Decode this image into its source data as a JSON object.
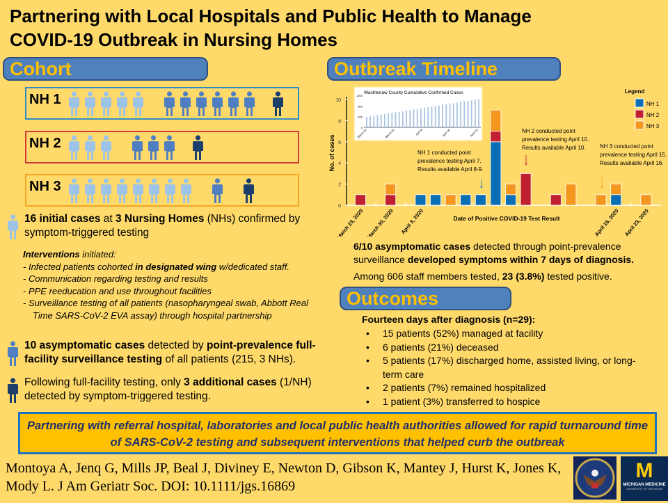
{
  "title": "Partnering with Local Hospitals and Public Health to Manage COVID-19 Outbreak in Nursing Homes",
  "sections": {
    "cohort": "Cohort",
    "timeline": "Outbreak Timeline",
    "outcomes": "Outcomes"
  },
  "cohort": {
    "homes": [
      {
        "label": "NH 1",
        "initial": 5,
        "asymptomatic": 6,
        "additional": 1,
        "color": "#2E8BC0"
      },
      {
        "label": "NH 2",
        "initial": 3,
        "asymptomatic": 3,
        "additional": 1,
        "color": "#D03A3A"
      },
      {
        "label": "NH 3",
        "initial": 8,
        "asymptomatic": 1,
        "additional": 1,
        "color": "#F5A623"
      }
    ],
    "figure_colors": {
      "initial": "#9DC3E6",
      "asymptomatic": "#4F7FC0",
      "additional": "#1B3E6B"
    }
  },
  "left": {
    "p1": {
      "b1": "16 initial cases",
      "t1": " at ",
      "b2": "3 Nursing Homes",
      "t2": " (NHs) confirmed by symptom-triggered testing"
    },
    "interventions_b": "Interventions",
    "interventions_t": " initiated:",
    "items": [
      {
        "t": "Infected patients cohorted ",
        "b": "in designated wing",
        "t2": " w/dedicated staff."
      },
      {
        "t": "Communication regarding testing and results"
      },
      {
        "t": "PPE reeducation and use throughout facilities"
      },
      {
        "t": "Surveillance testing of all patients (nasopharyngeal swab, Abbott Real Time SARS-CoV-2 EVA assay) through hospital partnership"
      }
    ],
    "p2": {
      "b1": "10 asymptomatic cases",
      "t1": " detected by ",
      "b2": "point-prevalence full-facility surveillance testing",
      "t2": " of all patients (215, 3 NHs)."
    },
    "p3": {
      "t1": "Following full-facility testing, only ",
      "b1": "3 additional cases",
      "t2": " (1/NH) detected by symptom-triggered testing."
    }
  },
  "chart_data": {
    "type": "bar",
    "stacked": true,
    "xlabel": "Date of Positive COVID-19 Test Result",
    "ylabel": "No. of cases",
    "ylim": [
      0,
      10
    ],
    "yticks": [
      0,
      2,
      4,
      6,
      8,
      10
    ],
    "categories": [
      "March 23, 2020",
      "//",
      "March 30, 2020",
      "//",
      "April 3, 2020",
      "",
      "",
      "",
      "",
      "",
      "",
      "",
      "",
      "",
      "",
      "",
      "",
      "April 16, 2020",
      "//",
      "April 23, 2020"
    ],
    "series": [
      {
        "name": "NH 1",
        "color": "#0A6EB4",
        "values": [
          0,
          0,
          0,
          0,
          1,
          1,
          0,
          1,
          1,
          6,
          1,
          0,
          0,
          0,
          0,
          0,
          0,
          1,
          0,
          0
        ]
      },
      {
        "name": "NH 2",
        "color": "#C0202F",
        "values": [
          1,
          0,
          1,
          0,
          0,
          0,
          0,
          0,
          0,
          1,
          0,
          3,
          0,
          1,
          0,
          0,
          0,
          0,
          0,
          0
        ]
      },
      {
        "name": "NH 3",
        "color": "#F5961F",
        "values": [
          0,
          0,
          1,
          0,
          0,
          0,
          1,
          0,
          0,
          2,
          1,
          0,
          0,
          0,
          2,
          0,
          1,
          1,
          0,
          1
        ]
      }
    ],
    "legend_title": "Legend",
    "legend_position": "top-right",
    "annotations": [
      "NH 1 conducted point prevalence testing April 7. Results available April 8-9.",
      "NH 2 conducted point prevalence testing April 10. Results available April 10.",
      "NH 3 conducted point prevalence testing April 15. Results available April 16."
    ],
    "inset": {
      "title": "Washtenaw County Cumulative Confirmed Cases",
      "yticks": [
        "0",
        "400",
        "800",
        "1200"
      ],
      "xticks": [
        "March 23",
        "March 30",
        "April 8",
        "April 16",
        "April 23"
      ]
    }
  },
  "right": {
    "p1": {
      "b1": "6/10 asymptomatic cases",
      "t1": " detected through point-prevalence surveillance ",
      "b2": "developed symptoms within 7 days of diagnosis."
    },
    "p2": {
      "t1": "Among 606 staff members tested, ",
      "b1": "23 (3.8%)",
      "t2": " tested positive."
    },
    "outcomes_head": "Fourteen days after diagnosis (n=29):",
    "outcomes": [
      "15 patients (52%) managed at facility",
      "6 patients (21%) deceased",
      "5 patients (17%) discharged home,  assisted living, or long-term care",
      "2 patients (7%) remained hospitalized",
      "1 patient (3%) transferred to hospice"
    ]
  },
  "banner": "Partnering with referral hospital, laboratories and local public health authorities allowed for rapid turnaround time of SARS-CoV-2 testing and subsequent interventions that helped curb the outbreak",
  "citation": "Montoya A, Jenq G, Mills JP, Beal J, Diviney E, Newton D, Gibson K, Mantey J, Hurst K, Jones K, Mody L.  J Am Geriatr Soc. DOI: 10.1111/jgs.16869",
  "logos": {
    "va": "Department of Veterans Affairs seal",
    "mm_main": "MICHIGAN MEDICINE",
    "mm_sub": "UNIVERSITY OF MICHIGAN"
  }
}
